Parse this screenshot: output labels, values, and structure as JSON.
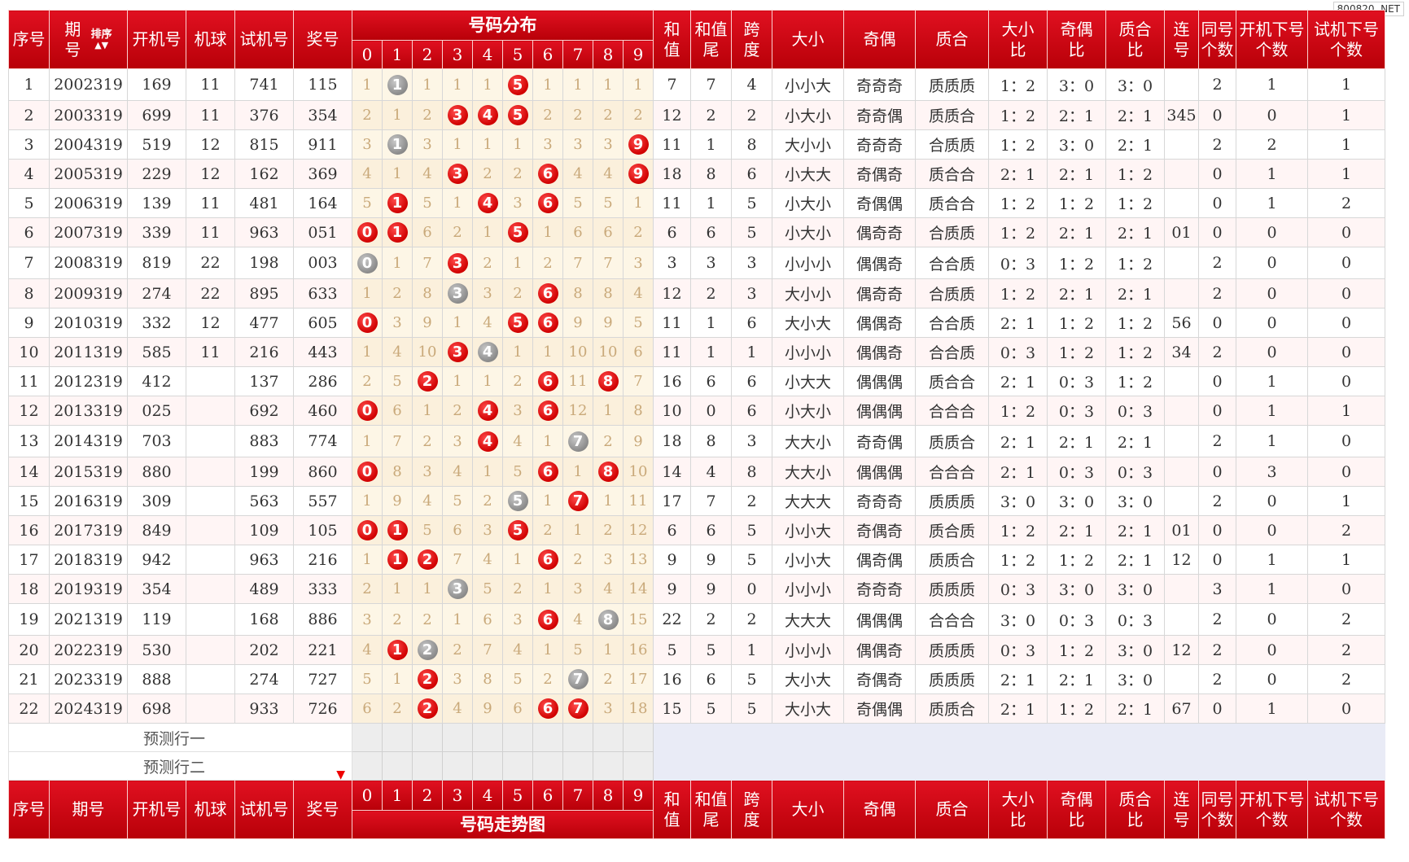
{
  "watermark": "800820. NET",
  "header": {
    "seq": "序号",
    "period_top": "期",
    "period_bottom": "号",
    "sort_label": "排序",
    "sort_arrows": "▲▼",
    "period_full": "期号",
    "open_num": "开机号",
    "machine_ball": "机球",
    "test_num": "试机号",
    "prize_num": "奖号",
    "dist_title": "号码分布",
    "trend_title": "号码走势图",
    "digits": [
      "0",
      "1",
      "2",
      "3",
      "4",
      "5",
      "6",
      "7",
      "8",
      "9"
    ],
    "sum_top": "和",
    "sum_bottom": "值",
    "sumtail_top": "和值",
    "sumtail_bottom": "尾",
    "span_top": "跨",
    "span_bottom": "度",
    "bigsmall": "大小",
    "oddeven": "奇偶",
    "primecomp": "质合",
    "bsr_top": "大小",
    "bsr_bottom": "比",
    "oer_top": "奇偶",
    "oer_bottom": "比",
    "pcr_top": "质合",
    "pcr_bottom": "比",
    "consec_top": "连",
    "consec_bottom": "号",
    "same_top": "同号",
    "same_bottom": "个数",
    "opennext_top": "开机下号",
    "opennext_bottom": "个数",
    "testnext_top": "试机下号",
    "testnext_bottom": "个数"
  },
  "rows": [
    {
      "seq": "1",
      "period": "2002319",
      "open": "169",
      "ball": "11",
      "test": "741",
      "prize": "115",
      "dist": [
        "1",
        "1",
        "1",
        "1",
        "1",
        "5",
        "1",
        "1",
        "1",
        "1"
      ],
      "red": [
        5
      ],
      "gray": [
        1
      ],
      "sum": "7",
      "tail": "7",
      "span": "4",
      "bs": "小小大",
      "oe": "奇奇奇",
      "pc": "质质质",
      "bsr": "1：2",
      "oer": "3：0",
      "pcr": "3：0",
      "consec": "",
      "same": "2",
      "on": "1",
      "tn": "1"
    },
    {
      "seq": "2",
      "period": "2003319",
      "open": "699",
      "ball": "11",
      "test": "376",
      "prize": "354",
      "dist": [
        "2",
        "1",
        "2",
        "3",
        "4",
        "5",
        "2",
        "2",
        "2",
        "2"
      ],
      "red": [
        3,
        4,
        5
      ],
      "gray": [],
      "sum": "12",
      "tail": "2",
      "span": "2",
      "bs": "小大小",
      "oe": "奇奇偶",
      "pc": "质质合",
      "bsr": "1：2",
      "oer": "2：1",
      "pcr": "2：1",
      "consec": "345",
      "same": "0",
      "on": "0",
      "tn": "1"
    },
    {
      "seq": "3",
      "period": "2004319",
      "open": "519",
      "ball": "12",
      "test": "815",
      "prize": "911",
      "dist": [
        "3",
        "1",
        "3",
        "1",
        "1",
        "1",
        "3",
        "3",
        "3",
        "9"
      ],
      "red": [
        9
      ],
      "gray": [
        1
      ],
      "sum": "11",
      "tail": "1",
      "span": "8",
      "bs": "大小小",
      "oe": "奇奇奇",
      "pc": "合质质",
      "bsr": "1：2",
      "oer": "3：0",
      "pcr": "2：1",
      "consec": "",
      "same": "2",
      "on": "2",
      "tn": "1"
    },
    {
      "seq": "4",
      "period": "2005319",
      "open": "229",
      "ball": "12",
      "test": "162",
      "prize": "369",
      "dist": [
        "4",
        "1",
        "4",
        "3",
        "2",
        "2",
        "6",
        "4",
        "4",
        "9"
      ],
      "red": [
        3,
        6,
        9
      ],
      "gray": [],
      "sum": "18",
      "tail": "8",
      "span": "6",
      "bs": "小大大",
      "oe": "奇偶奇",
      "pc": "质合合",
      "bsr": "2：1",
      "oer": "2：1",
      "pcr": "1：2",
      "consec": "",
      "same": "0",
      "on": "1",
      "tn": "1"
    },
    {
      "seq": "5",
      "period": "2006319",
      "open": "139",
      "ball": "11",
      "test": "481",
      "prize": "164",
      "dist": [
        "5",
        "1",
        "5",
        "1",
        "4",
        "3",
        "6",
        "5",
        "5",
        "1"
      ],
      "red": [
        1,
        4,
        6
      ],
      "gray": [],
      "sum": "11",
      "tail": "1",
      "span": "5",
      "bs": "小大小",
      "oe": "奇偶偶",
      "pc": "质合合",
      "bsr": "1：2",
      "oer": "1：2",
      "pcr": "1：2",
      "consec": "",
      "same": "0",
      "on": "1",
      "tn": "2"
    },
    {
      "seq": "6",
      "period": "2007319",
      "open": "339",
      "ball": "11",
      "test": "963",
      "prize": "051",
      "dist": [
        "0",
        "1",
        "6",
        "2",
        "1",
        "5",
        "1",
        "6",
        "6",
        "2"
      ],
      "red": [
        0,
        1,
        5
      ],
      "gray": [],
      "sum": "6",
      "tail": "6",
      "span": "5",
      "bs": "小大小",
      "oe": "偶奇奇",
      "pc": "合质质",
      "bsr": "1：2",
      "oer": "2：1",
      "pcr": "2：1",
      "consec": "01",
      "same": "0",
      "on": "0",
      "tn": "0"
    },
    {
      "seq": "7",
      "period": "2008319",
      "open": "819",
      "ball": "22",
      "test": "198",
      "prize": "003",
      "dist": [
        "0",
        "1",
        "7",
        "3",
        "2",
        "1",
        "2",
        "7",
        "7",
        "3"
      ],
      "red": [
        3
      ],
      "gray": [
        0
      ],
      "sum": "3",
      "tail": "3",
      "span": "3",
      "bs": "小小小",
      "oe": "偶偶奇",
      "pc": "合合质",
      "bsr": "0：3",
      "oer": "1：2",
      "pcr": "1：2",
      "consec": "",
      "same": "2",
      "on": "0",
      "tn": "0"
    },
    {
      "seq": "8",
      "period": "2009319",
      "open": "274",
      "ball": "22",
      "test": "895",
      "prize": "633",
      "dist": [
        "1",
        "2",
        "8",
        "3",
        "3",
        "2",
        "6",
        "8",
        "8",
        "4"
      ],
      "red": [
        6
      ],
      "gray": [
        3
      ],
      "sum": "12",
      "tail": "2",
      "span": "3",
      "bs": "大小小",
      "oe": "偶奇奇",
      "pc": "合质质",
      "bsr": "1：2",
      "oer": "2：1",
      "pcr": "2：1",
      "consec": "",
      "same": "2",
      "on": "0",
      "tn": "0"
    },
    {
      "seq": "9",
      "period": "2010319",
      "open": "332",
      "ball": "12",
      "test": "477",
      "prize": "605",
      "dist": [
        "0",
        "3",
        "9",
        "1",
        "4",
        "5",
        "6",
        "9",
        "9",
        "5"
      ],
      "red": [
        0,
        5,
        6
      ],
      "gray": [],
      "sum": "11",
      "tail": "1",
      "span": "6",
      "bs": "大小大",
      "oe": "偶偶奇",
      "pc": "合合质",
      "bsr": "2：1",
      "oer": "1：2",
      "pcr": "1：2",
      "consec": "56",
      "same": "0",
      "on": "0",
      "tn": "0"
    },
    {
      "seq": "10",
      "period": "2011319",
      "open": "585",
      "ball": "11",
      "test": "216",
      "prize": "443",
      "dist": [
        "1",
        "4",
        "10",
        "3",
        "4",
        "1",
        "1",
        "10",
        "10",
        "6"
      ],
      "red": [
        3
      ],
      "gray": [
        4
      ],
      "sum": "11",
      "tail": "1",
      "span": "1",
      "bs": "小小小",
      "oe": "偶偶奇",
      "pc": "合合质",
      "bsr": "0：3",
      "oer": "1：2",
      "pcr": "1：2",
      "consec": "34",
      "same": "2",
      "on": "0",
      "tn": "0"
    },
    {
      "seq": "11",
      "period": "2012319",
      "open": "412",
      "ball": "",
      "test": "137",
      "prize": "286",
      "dist": [
        "2",
        "5",
        "2",
        "1",
        "1",
        "2",
        "6",
        "11",
        "8",
        "7"
      ],
      "red": [
        2,
        6,
        8
      ],
      "gray": [],
      "sum": "16",
      "tail": "6",
      "span": "6",
      "bs": "小大大",
      "oe": "偶偶偶",
      "pc": "质合合",
      "bsr": "2：1",
      "oer": "0：3",
      "pcr": "1：2",
      "consec": "",
      "same": "0",
      "on": "1",
      "tn": "0"
    },
    {
      "seq": "12",
      "period": "2013319",
      "open": "025",
      "ball": "",
      "test": "692",
      "prize": "460",
      "dist": [
        "0",
        "6",
        "1",
        "2",
        "4",
        "3",
        "6",
        "12",
        "1",
        "8"
      ],
      "red": [
        0,
        4,
        6
      ],
      "gray": [],
      "sum": "10",
      "tail": "0",
      "span": "6",
      "bs": "小大小",
      "oe": "偶偶偶",
      "pc": "合合合",
      "bsr": "1：2",
      "oer": "0：3",
      "pcr": "0：3",
      "consec": "",
      "same": "0",
      "on": "1",
      "tn": "1"
    },
    {
      "seq": "13",
      "period": "2014319",
      "open": "703",
      "ball": "",
      "test": "883",
      "prize": "774",
      "dist": [
        "1",
        "7",
        "2",
        "3",
        "4",
        "4",
        "1",
        "7",
        "2",
        "9"
      ],
      "red": [
        4
      ],
      "gray": [
        7
      ],
      "sum": "18",
      "tail": "8",
      "span": "3",
      "bs": "大大小",
      "oe": "奇奇偶",
      "pc": "质质合",
      "bsr": "2：1",
      "oer": "2：1",
      "pcr": "2：1",
      "consec": "",
      "same": "2",
      "on": "1",
      "tn": "0"
    },
    {
      "seq": "14",
      "period": "2015319",
      "open": "880",
      "ball": "",
      "test": "199",
      "prize": "860",
      "dist": [
        "0",
        "8",
        "3",
        "4",
        "1",
        "5",
        "6",
        "1",
        "8",
        "10"
      ],
      "red": [
        0,
        6,
        8
      ],
      "gray": [],
      "sum": "14",
      "tail": "4",
      "span": "8",
      "bs": "大大小",
      "oe": "偶偶偶",
      "pc": "合合合",
      "bsr": "2：1",
      "oer": "0：3",
      "pcr": "0：3",
      "consec": "",
      "same": "0",
      "on": "3",
      "tn": "0"
    },
    {
      "seq": "15",
      "period": "2016319",
      "open": "309",
      "ball": "",
      "test": "563",
      "prize": "557",
      "dist": [
        "1",
        "9",
        "4",
        "5",
        "2",
        "5",
        "1",
        "7",
        "1",
        "11"
      ],
      "red": [
        7
      ],
      "gray": [
        5
      ],
      "sum": "17",
      "tail": "7",
      "span": "2",
      "bs": "大大大",
      "oe": "奇奇奇",
      "pc": "质质质",
      "bsr": "3：0",
      "oer": "3：0",
      "pcr": "3：0",
      "consec": "",
      "same": "2",
      "on": "0",
      "tn": "1"
    },
    {
      "seq": "16",
      "period": "2017319",
      "open": "849",
      "ball": "",
      "test": "109",
      "prize": "105",
      "dist": [
        "0",
        "1",
        "5",
        "6",
        "3",
        "5",
        "2",
        "1",
        "2",
        "12"
      ],
      "red": [
        0,
        1,
        5
      ],
      "gray": [],
      "sum": "6",
      "tail": "6",
      "span": "5",
      "bs": "小小大",
      "oe": "奇偶奇",
      "pc": "质合质",
      "bsr": "1：2",
      "oer": "2：1",
      "pcr": "2：1",
      "consec": "01",
      "same": "0",
      "on": "0",
      "tn": "2"
    },
    {
      "seq": "17",
      "period": "2018319",
      "open": "942",
      "ball": "",
      "test": "963",
      "prize": "216",
      "dist": [
        "1",
        "1",
        "2",
        "7",
        "4",
        "1",
        "6",
        "2",
        "3",
        "13"
      ],
      "red": [
        1,
        2,
        6
      ],
      "gray": [],
      "sum": "9",
      "tail": "9",
      "span": "5",
      "bs": "小小大",
      "oe": "偶奇偶",
      "pc": "质质合",
      "bsr": "1：2",
      "oer": "1：2",
      "pcr": "2：1",
      "consec": "12",
      "same": "0",
      "on": "1",
      "tn": "1"
    },
    {
      "seq": "18",
      "period": "2019319",
      "open": "354",
      "ball": "",
      "test": "489",
      "prize": "333",
      "dist": [
        "2",
        "1",
        "1",
        "3",
        "5",
        "2",
        "1",
        "3",
        "4",
        "14"
      ],
      "red": [],
      "gray": [
        3
      ],
      "sum": "9",
      "tail": "9",
      "span": "0",
      "bs": "小小小",
      "oe": "奇奇奇",
      "pc": "质质质",
      "bsr": "0：3",
      "oer": "3：0",
      "pcr": "3：0",
      "consec": "",
      "same": "3",
      "on": "1",
      "tn": "0"
    },
    {
      "seq": "19",
      "period": "2021319",
      "open": "119",
      "ball": "",
      "test": "168",
      "prize": "886",
      "dist": [
        "3",
        "2",
        "2",
        "1",
        "6",
        "3",
        "6",
        "4",
        "8",
        "15"
      ],
      "red": [
        6
      ],
      "gray": [
        8
      ],
      "sum": "22",
      "tail": "2",
      "span": "2",
      "bs": "大大大",
      "oe": "偶偶偶",
      "pc": "合合合",
      "bsr": "3：0",
      "oer": "0：3",
      "pcr": "0：3",
      "consec": "",
      "same": "2",
      "on": "0",
      "tn": "2"
    },
    {
      "seq": "20",
      "period": "2022319",
      "open": "530",
      "ball": "",
      "test": "202",
      "prize": "221",
      "dist": [
        "4",
        "1",
        "2",
        "2",
        "7",
        "4",
        "1",
        "5",
        "1",
        "16"
      ],
      "red": [
        1
      ],
      "gray": [
        2
      ],
      "sum": "5",
      "tail": "5",
      "span": "1",
      "bs": "小小小",
      "oe": "偶偶奇",
      "pc": "质质质",
      "bsr": "0：3",
      "oer": "1：2",
      "pcr": "3：0",
      "consec": "12",
      "same": "2",
      "on": "0",
      "tn": "2"
    },
    {
      "seq": "21",
      "period": "2023319",
      "open": "888",
      "ball": "",
      "test": "274",
      "prize": "727",
      "dist": [
        "5",
        "1",
        "2",
        "3",
        "8",
        "5",
        "2",
        "7",
        "2",
        "17"
      ],
      "red": [
        2
      ],
      "gray": [
        7
      ],
      "sum": "16",
      "tail": "6",
      "span": "5",
      "bs": "大小大",
      "oe": "奇偶奇",
      "pc": "质质质",
      "bsr": "2：1",
      "oer": "2：1",
      "pcr": "3：0",
      "consec": "",
      "same": "2",
      "on": "0",
      "tn": "2"
    },
    {
      "seq": "22",
      "period": "2024319",
      "open": "698",
      "ball": "",
      "test": "933",
      "prize": "726",
      "dist": [
        "6",
        "2",
        "2",
        "4",
        "9",
        "6",
        "6",
        "7",
        "3",
        "18"
      ],
      "red": [
        2,
        6,
        7
      ],
      "gray": [],
      "sum": "15",
      "tail": "5",
      "span": "5",
      "bs": "大小大",
      "oe": "奇偶偶",
      "pc": "质质合",
      "bsr": "2：1",
      "oer": "1：2",
      "pcr": "2：1",
      "consec": "67",
      "same": "0",
      "on": "1",
      "tn": "0"
    }
  ],
  "predictions": [
    "预测行一",
    "预测行二"
  ]
}
